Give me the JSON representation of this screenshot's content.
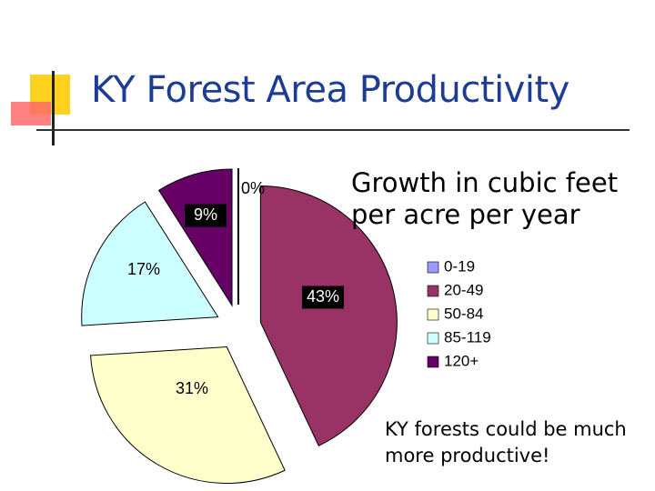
{
  "title": "KY Forest Area Productivity",
  "subtitle": "Growth in cubic feet per acre per year",
  "note": "KY forests could be much more productive!",
  "chart_data": {
    "type": "pie",
    "exploded": true,
    "categories": [
      "0-19",
      "20-49",
      "50-84",
      "85-119",
      "120+"
    ],
    "values": [
      0,
      43,
      31,
      17,
      9
    ],
    "data_labels": [
      "0%",
      "43%",
      "31%",
      "17%",
      "9%"
    ],
    "colors": [
      "#9999ff",
      "#993366",
      "#ffffcc",
      "#ccffff",
      "#660066"
    ],
    "legend": "right"
  }
}
